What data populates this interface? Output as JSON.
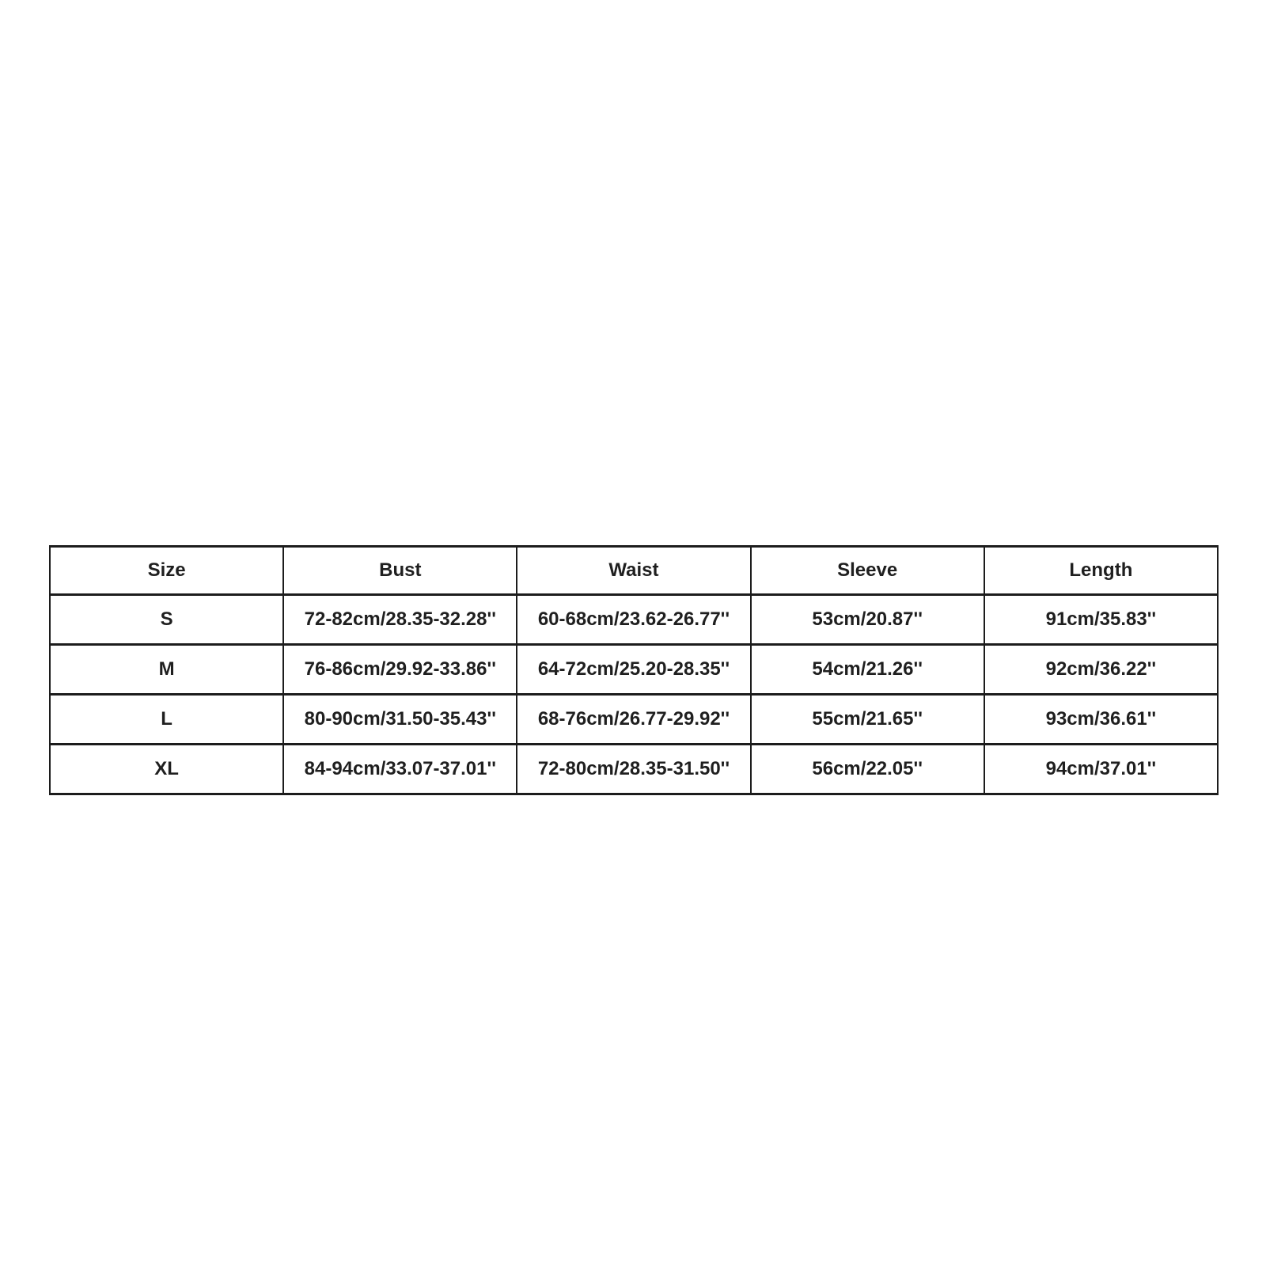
{
  "page": {
    "background_color": "#ffffff",
    "text_color": "#1f1f1f",
    "border_color": "#1c1c1c"
  },
  "size_chart": {
    "columns": [
      "Size",
      "Bust",
      "Waist",
      "Sleeve",
      "Length"
    ],
    "rows": [
      [
        "S",
        "72-82cm/28.35-32.28''",
        "60-68cm/23.62-26.77''",
        "53cm/20.87''",
        "91cm/35.83''"
      ],
      [
        "M",
        "76-86cm/29.92-33.86''",
        "64-72cm/25.20-28.35''",
        "54cm/21.26''",
        "92cm/36.22''"
      ],
      [
        "L",
        "80-90cm/31.50-35.43''",
        "68-76cm/26.77-29.92''",
        "55cm/21.65''",
        "93cm/36.61''"
      ],
      [
        "XL",
        "84-94cm/33.07-37.01''",
        "72-80cm/28.35-31.50''",
        "56cm/22.05''",
        "94cm/37.01''"
      ]
    ]
  }
}
